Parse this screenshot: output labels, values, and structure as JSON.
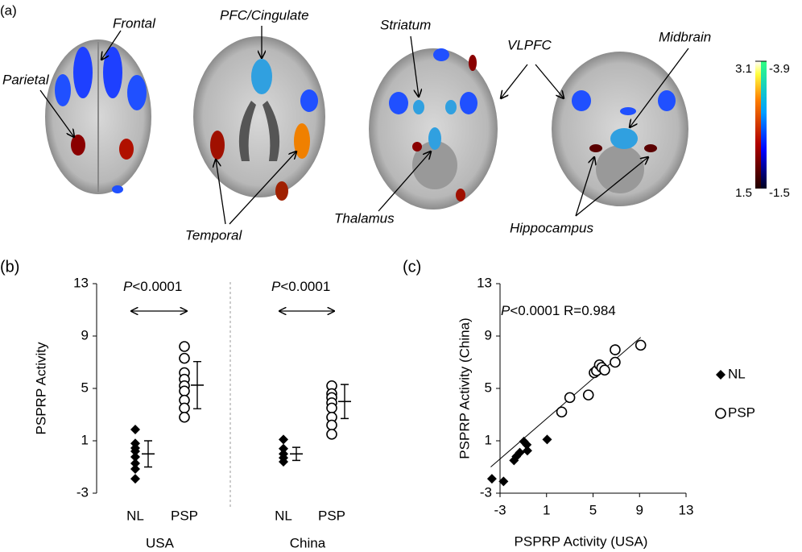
{
  "panel_a": {
    "panel": "(a)",
    "labels": [
      "Frontal",
      "Parietal",
      "PFC/Cingulate",
      "Temporal",
      "Striatum",
      "Thalamus",
      "VLPFC",
      "Midbrain",
      "Hippocampus"
    ],
    "colorbar": {
      "hot_range": [
        1.5,
        3.1
      ],
      "cool_range": [
        -1.5,
        -3.9
      ]
    }
  },
  "chart_data": [
    {
      "type": "dot",
      "panel": "(b)",
      "ylabel": "PSPRP Activity",
      "ylim": [
        -3,
        13
      ],
      "yticks": [
        -3,
        1,
        5,
        9,
        13
      ],
      "categories": [
        "NL",
        "PSP",
        "NL",
        "PSP"
      ],
      "groups": [
        "USA",
        "China"
      ],
      "markers": [
        "diamond",
        "circle",
        "diamond",
        "circle"
      ],
      "points": [
        [
          1.86,
          0.8,
          0.45,
          0.2,
          -0.23,
          -0.72,
          -1.15,
          -1.9
        ],
        [
          8.2,
          7.3,
          6.2,
          5.7,
          5.2,
          4.8,
          4.1,
          3.5,
          2.8
        ],
        [
          1.1,
          0.4,
          0.0,
          -0.3,
          -0.6
        ],
        [
          5.2,
          4.6,
          4.3,
          3.9,
          3.5,
          2.8,
          2.2,
          1.5
        ]
      ],
      "means": [
        0.0,
        5.25,
        0.0,
        4.0
      ],
      "sds": [
        1.0,
        1.8,
        0.5,
        1.3
      ],
      "annotations": [
        {
          "italic": "P",
          "text": "<0.0001"
        },
        {
          "italic": "P",
          "text": "<0.0001"
        }
      ]
    },
    {
      "type": "scatter",
      "panel": "(c)",
      "xlabel": "PSPRP Activity (USA)",
      "ylabel": "PSPRP Activity (China)",
      "xlim": [
        -3,
        13
      ],
      "ylim": [
        -3,
        13
      ],
      "xticks": [
        -3,
        1,
        5,
        9,
        13
      ],
      "yticks": [
        -3,
        1,
        5,
        9,
        13
      ],
      "series": [
        {
          "name": "NL",
          "marker": "diamond",
          "x": [
            -3.7,
            -2.7,
            -1.8,
            -1.6,
            -1.3,
            -0.95,
            -0.7,
            -0.65,
            1.05
          ],
          "y": [
            -1.9,
            -2.1,
            -0.5,
            -0.2,
            0.1,
            0.95,
            0.7,
            0.25,
            1.1
          ]
        },
        {
          "name": "PSP",
          "marker": "circle",
          "x": [
            2.3,
            3.0,
            4.6,
            5.1,
            5.3,
            5.55,
            5.75,
            6.0,
            6.9,
            6.9,
            9.1
          ],
          "y": [
            3.2,
            4.3,
            4.5,
            6.2,
            6.35,
            6.8,
            6.6,
            6.4,
            7.95,
            7.0,
            8.3
          ]
        }
      ],
      "fit_line": {
        "x": [
          -3.8,
          9.1
        ],
        "y": [
          -1.0,
          8.9
        ]
      },
      "annotation": {
        "italic": "P",
        "text": "<0.0001 R=0.984"
      }
    }
  ]
}
